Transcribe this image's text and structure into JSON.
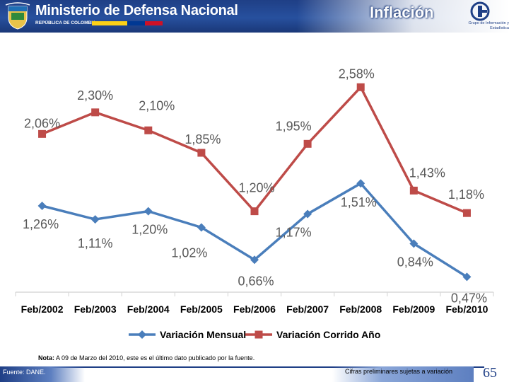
{
  "header": {
    "ministry_title": "Ministerio de Defensa Nacional",
    "ministry_subtitle": "REPÚBLICA DE COLOMBIA",
    "page_title": "Inflación",
    "group_name": "Grupo de Información y Estadística"
  },
  "note": {
    "prefix": "Nota:",
    "text": " A 09 de Marzo del 2010, este es el último dato publicado por la fuente."
  },
  "footer": {
    "source": "Fuente: DANE.",
    "preliminary": "Cifras preliminares sujetas a variación",
    "page_number": "65"
  },
  "colors": {
    "header_blue": "#1f3f86",
    "series_blue": "#4a7ebb",
    "series_red": "#be4b48",
    "axis": "#d9d9d9"
  },
  "chart_data": {
    "type": "line",
    "categories": [
      "Feb/2002",
      "Feb/2003",
      "Feb/2004",
      "Feb/2005",
      "Feb/2006",
      "Feb/2007",
      "Feb/2008",
      "Feb/2009",
      "Feb/2010"
    ],
    "series": [
      {
        "name": "Variación Mensual",
        "marker": "diamond",
        "color": "#4a7ebb",
        "values": [
          1.26,
          1.11,
          1.2,
          1.02,
          0.66,
          1.17,
          1.51,
          0.84,
          0.47
        ],
        "labels": [
          "1,26%",
          "1,11%",
          "1,20%",
          "1,02%",
          "0,66%",
          "1,17%",
          "1,51%",
          "0,84%",
          "0,47%"
        ]
      },
      {
        "name": "Variación Corrido Año",
        "marker": "square",
        "color": "#be4b48",
        "values": [
          2.06,
          2.3,
          2.1,
          1.85,
          1.2,
          1.95,
          2.58,
          1.43,
          1.18
        ],
        "labels": [
          "2,06%",
          "2,30%",
          "2,10%",
          "1,85%",
          "1,20%",
          "1,95%",
          "2,58%",
          "1,43%",
          "1,18%"
        ]
      }
    ],
    "legend_position": "bottom",
    "grid": false,
    "ylim": [
      0.3,
      2.7
    ]
  }
}
